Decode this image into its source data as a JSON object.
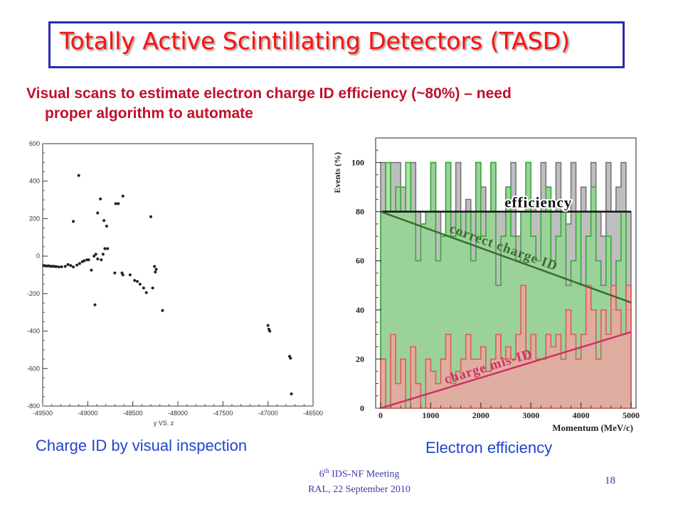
{
  "slide": {
    "title": "Totally Active Scintillating Detectors (TASD)",
    "subtitle_line1": "Visual scans to estimate electron charge ID efficiency (~80%) – need",
    "subtitle_line2": "proper algorithm to automate",
    "caption_left": "Charge ID by visual inspection",
    "caption_right": "Electron efficiency",
    "footer_ord": "6",
    "footer_sup": "th",
    "footer_rest": " IDS-NF Meeting",
    "footer_line2": "RAL, 22 September 2010",
    "page_number": "18",
    "colors": {
      "title": "#ff1010",
      "subtitle": "#c0102a",
      "caption": "#2244cc",
      "title_border": "#2b2bb0",
      "footer": "#3a3aa8"
    }
  },
  "chart_data": [
    {
      "type": "scatter",
      "xlabel": "y VS. z",
      "ylabel": "",
      "xlim": [
        -49500,
        -46500
      ],
      "ylim": [
        -800,
        600
      ],
      "xticks": [
        "-49500",
        "-49000",
        "-48500",
        "-48000",
        "-47500",
        "-47000",
        "-46500"
      ],
      "yticks": [
        "600",
        "400",
        "200",
        "0",
        "-200",
        "-400",
        "-600",
        "-800"
      ],
      "points": [
        [
          -49490,
          -50
        ],
        [
          -49470,
          -52
        ],
        [
          -49450,
          -53
        ],
        [
          -49430,
          -52
        ],
        [
          -49410,
          -55
        ],
        [
          -49390,
          -54
        ],
        [
          -49370,
          -55
        ],
        [
          -49350,
          -56
        ],
        [
          -49320,
          -58
        ],
        [
          -49290,
          -57
        ],
        [
          -49250,
          -55
        ],
        [
          -49220,
          -45
        ],
        [
          -49190,
          -50
        ],
        [
          -49160,
          -58
        ],
        [
          -49120,
          -48
        ],
        [
          -49090,
          -40
        ],
        [
          -49060,
          -30
        ],
        [
          -49040,
          -25
        ],
        [
          -49010,
          -20
        ],
        [
          -48990,
          -20
        ],
        [
          -48960,
          -75
        ],
        [
          -48930,
          0
        ],
        [
          -48910,
          10
        ],
        [
          -48890,
          -15
        ],
        [
          -48850,
          -20
        ],
        [
          -48830,
          10
        ],
        [
          -48810,
          40
        ],
        [
          -48780,
          40
        ],
        [
          -48700,
          -90
        ],
        [
          -48620,
          -90
        ],
        [
          -48610,
          -100
        ],
        [
          -48530,
          -100
        ],
        [
          -48480,
          -130
        ],
        [
          -48450,
          -135
        ],
        [
          -48420,
          -150
        ],
        [
          -48380,
          -170
        ],
        [
          -48350,
          -195
        ],
        [
          -48280,
          -170
        ],
        [
          -48260,
          -55
        ],
        [
          -48250,
          -85
        ],
        [
          -48240,
          -70
        ],
        [
          -48170,
          -290
        ],
        [
          -49100,
          430
        ],
        [
          -49160,
          185
        ],
        [
          -48890,
          230
        ],
        [
          -48860,
          305
        ],
        [
          -48820,
          190
        ],
        [
          -48790,
          160
        ],
        [
          -48690,
          280
        ],
        [
          -48660,
          280
        ],
        [
          -48610,
          320
        ],
        [
          -48300,
          210
        ],
        [
          -48920,
          -260
        ],
        [
          -47000,
          -370
        ],
        [
          -46990,
          -390
        ],
        [
          -46980,
          -400
        ],
        [
          -46760,
          -535
        ],
        [
          -46750,
          -545
        ],
        [
          -46740,
          -735
        ]
      ]
    },
    {
      "type": "area",
      "xlabel": "Momentum (MeV/c)",
      "ylabel": "Events (%)",
      "xlim": [
        -100,
        5100
      ],
      "ylim": [
        0,
        110
      ],
      "xticks": [
        "0",
        "1000",
        "2000",
        "3000",
        "4000",
        "5000"
      ],
      "yticks": [
        "0",
        "20",
        "40",
        "60",
        "80",
        "100"
      ],
      "bin_width": 100,
      "series": [
        {
          "name": "",
          "color": "#a8a8a8",
          "values": [
            100,
            80,
            100,
            100,
            90,
            80,
            100,
            80,
            75,
            80,
            100,
            80,
            70,
            100,
            80,
            100,
            80,
            85,
            80,
            100,
            90,
            80,
            100,
            80,
            80,
            90,
            100,
            70,
            80,
            100,
            85,
            80,
            100,
            90,
            80,
            100,
            80,
            75,
            100,
            80,
            90,
            80,
            100,
            80,
            70,
            100,
            80,
            90,
            100,
            80
          ]
        },
        {
          "name": "",
          "color": "#8dd88d",
          "values": [
            80,
            100,
            80,
            90,
            80,
            100,
            80,
            60,
            75,
            80,
            100,
            60,
            70,
            100,
            70,
            80,
            70,
            80,
            60,
            100,
            70,
            80,
            100,
            50,
            70,
            90,
            70,
            60,
            80,
            100,
            70,
            60,
            80,
            90,
            60,
            70,
            80,
            50,
            60,
            80,
            50,
            70,
            90,
            60,
            50,
            70,
            40,
            60,
            80,
            40
          ]
        },
        {
          "name": "",
          "color": "#f5a0a0",
          "values": [
            20,
            0,
            30,
            10,
            20,
            0,
            25,
            10,
            0,
            20,
            15,
            10,
            20,
            30,
            10,
            15,
            20,
            30,
            20,
            20,
            25,
            15,
            20,
            30,
            20,
            25,
            20,
            30,
            50,
            20,
            30,
            20,
            20,
            30,
            25,
            30,
            20,
            40,
            30,
            20,
            30,
            50,
            40,
            20,
            40,
            30,
            50,
            40,
            30,
            50
          ]
        }
      ],
      "lines": [
        {
          "label": "efficiency",
          "color": "#111111",
          "from": [
            0,
            80
          ],
          "to": [
            5000,
            80
          ]
        },
        {
          "label": "correct charge ID",
          "color": "#3b6b2a",
          "from": [
            0,
            80
          ],
          "to": [
            5000,
            43
          ]
        },
        {
          "label": "charge mis-ID",
          "color": "#d0306a",
          "from": [
            0,
            0
          ],
          "to": [
            5000,
            31
          ]
        }
      ]
    }
  ]
}
